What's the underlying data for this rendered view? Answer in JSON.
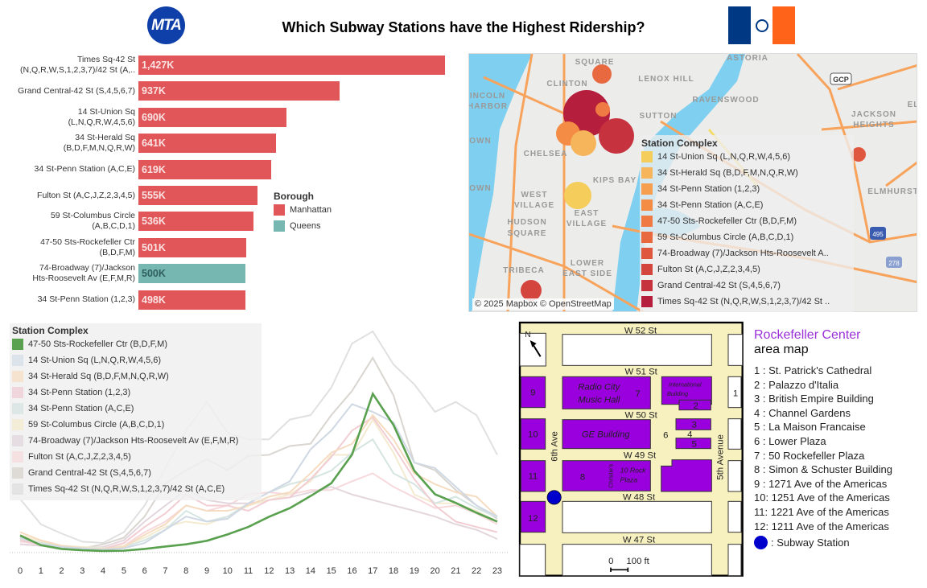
{
  "header": {
    "title": "Which Subway Stations have the Highest Ridership?",
    "logo_text": "MTA",
    "flag_colors": [
      "#003884",
      "#ffffff",
      "#ff6319"
    ]
  },
  "bar_chart": {
    "type": "bar",
    "rows": [
      {
        "label": [
          "Times Sq-42 St",
          "(N,Q,R,W,S,1,2,3,7)/42 St (A,.."
        ],
        "value": 1427,
        "value_label": "1,427K",
        "borough": "Manhattan"
      },
      {
        "label": [
          "Grand Central-42 St (S,4,5,6,7)"
        ],
        "value": 937,
        "value_label": "937K",
        "borough": "Manhattan"
      },
      {
        "label": [
          "14 St-Union Sq",
          "(L,N,Q,R,W,4,5,6)"
        ],
        "value": 690,
        "value_label": "690K",
        "borough": "Manhattan"
      },
      {
        "label": [
          "34 St-Herald Sq",
          "(B,D,F,M,N,Q,R,W)"
        ],
        "value": 641,
        "value_label": "641K",
        "borough": "Manhattan"
      },
      {
        "label": [
          "34 St-Penn Station (A,C,E)"
        ],
        "value": 619,
        "value_label": "619K",
        "borough": "Manhattan"
      },
      {
        "label": [
          "Fulton St (A,C,J,Z,2,3,4,5)"
        ],
        "value": 555,
        "value_label": "555K",
        "borough": "Manhattan"
      },
      {
        "label": [
          "59 St-Columbus Circle",
          "(A,B,C,D,1)"
        ],
        "value": 536,
        "value_label": "536K",
        "borough": "Manhattan"
      },
      {
        "label": [
          "47-50 Sts-Rockefeller Ctr",
          "(B,D,F,M)"
        ],
        "value": 501,
        "value_label": "501K",
        "borough": "Manhattan"
      },
      {
        "label": [
          "74-Broadway (7)/Jackson",
          "Hts-Roosevelt Av (E,F,M,R)"
        ],
        "value": 500,
        "value_label": "500K",
        "borough": "Queens"
      },
      {
        "label": [
          "34 St-Penn Station (1,2,3)"
        ],
        "value": 498,
        "value_label": "498K",
        "borough": "Manhattan"
      }
    ],
    "legend": {
      "title": "Borough",
      "items": [
        {
          "label": "Manhattan",
          "color": "#e15759"
        },
        {
          "label": "Queens",
          "color": "#76b7b2"
        }
      ]
    }
  },
  "map": {
    "legend_title": "Station Complex",
    "legend": [
      {
        "label": "14 St-Union Sq (L,N,Q,R,W,4,5,6)",
        "color": "#f5cd5a"
      },
      {
        "label": "34 St-Herald Sq (B,D,F,M,N,Q,R,W)",
        "color": "#f6b55a"
      },
      {
        "label": "34 St-Penn Station (1,2,3)",
        "color": "#f6a04f"
      },
      {
        "label": "34 St-Penn Station (A,C,E)",
        "color": "#f48c45"
      },
      {
        "label": "47-50 Sts-Rockefeller Ctr (B,D,F,M)",
        "color": "#ef7a43"
      },
      {
        "label": "59 St-Columbus Circle (A,B,C,D,1)",
        "color": "#e8683f"
      },
      {
        "label": "74-Broadway (7)/Jackson Hts-Roosevelt A..",
        "color": "#e0573f"
      },
      {
        "label": "Fulton St (A,C,J,Z,2,3,4,5)",
        "color": "#d4453e"
      },
      {
        "label": "Grand Central-42 St (S,4,5,6,7)",
        "color": "#c6323e"
      },
      {
        "label": "Times Sq-42 St (N,Q,R,W,S,1,2,3,7)/42 St ..",
        "color": "#b61e3d"
      }
    ],
    "places": [
      "ASTORIA",
      "SQUARE",
      "LENOX HILL",
      "CLINTON",
      "INCOLN",
      "HARBOR",
      "RAVENSWOOD",
      "JACKSON",
      "HEIGHTS",
      "SUTTON",
      "EL",
      "OWN",
      "CHELSEA",
      "KIPS BAY",
      "OWN",
      "WEST",
      "VILLAGE",
      "EAST",
      "VILLAGE",
      "HUDSON",
      "SQUARE",
      "ELMHURST",
      "LOWER",
      "EAST SIDE",
      "TRIBECA",
      "GCP",
      "278",
      "495"
    ],
    "attribution": "© 2025 Mapbox © OpenStreetMap"
  },
  "chart_data": {
    "type": "line",
    "x": [
      0,
      1,
      2,
      3,
      4,
      5,
      6,
      7,
      8,
      9,
      10,
      11,
      12,
      13,
      14,
      15,
      16,
      17,
      18,
      19,
      20,
      21,
      22,
      23
    ],
    "y_relative_scale": [
      0,
      100
    ],
    "legend_title": "Station Complex",
    "highlight_color": "#59a14f",
    "series": [
      {
        "name": "47-50 Sts-Rockefeller Ctr (B,D,F,M)",
        "color": "#59a14f",
        "highlight": true,
        "values": [
          7.4,
          3,
          1.3,
          0.7,
          0.4,
          0.5,
          1.3,
          2.4,
          3.4,
          5,
          7.9,
          11.3,
          15.9,
          19.8,
          25.3,
          31.1,
          44.1,
          71.7,
          57.5,
          36.8,
          26.1,
          22.2,
          17.7,
          13.7
        ]
      },
      {
        "name": "14 St-Union Sq (L,N,Q,R,W,4,5,6)",
        "color": "#cfd8e3",
        "values": [
          6.4,
          3.4,
          2.2,
          1.6,
          1,
          1.6,
          4,
          10,
          16,
          13.7,
          15,
          22,
          27,
          32,
          46.5,
          55,
          67,
          63.5,
          58.7,
          40.5,
          38,
          29.5,
          21,
          16
        ]
      },
      {
        "name": "34 St-Herald Sq (B,D,F,M,N,Q,R,W)",
        "color": "#f5dcc0",
        "values": [
          8.9,
          5.2,
          2.8,
          1.8,
          1.3,
          2.2,
          7.7,
          12.5,
          21,
          18.6,
          18.6,
          21,
          25,
          27,
          35.6,
          45,
          49,
          62,
          51,
          35.6,
          30.7,
          27,
          25,
          16
        ]
      },
      {
        "name": "34 St-Penn Station (1,2,3)",
        "color": "#f2cdd3",
        "values": [
          5.2,
          3.4,
          2.2,
          1.6,
          1.3,
          4,
          11.3,
          17.4,
          26,
          21,
          21,
          18.6,
          23.5,
          24.7,
          33,
          43,
          55,
          61,
          47.8,
          33,
          21,
          13.7,
          11.3,
          8.9
        ]
      },
      {
        "name": "34 St-Penn Station (A,C,E)",
        "color": "#d5e5e2",
        "values": [
          5.8,
          4,
          2.6,
          1.8,
          1.6,
          2.2,
          5.2,
          10,
          18.6,
          13.7,
          16,
          22,
          27,
          30.7,
          33,
          36.8,
          45,
          51,
          35.6,
          30.7,
          22,
          25,
          19.8,
          15.6
        ]
      },
      {
        "name": "59 St-Columbus Circle (A,B,C,D,1)",
        "color": "#f3ead0",
        "values": [
          7.7,
          4.6,
          2.8,
          2.2,
          1.8,
          2.8,
          6.4,
          11.3,
          13.7,
          12.5,
          16,
          21,
          23.5,
          26,
          32,
          44,
          44,
          60,
          45,
          26,
          22,
          22,
          18.6,
          13.7
        ]
      },
      {
        "name": "74-Broadway (7)/Jackson Hts-Roosevelt Av (E,F,M,R)",
        "color": "#e3d6dd",
        "values": [
          3.4,
          2.8,
          2.2,
          1.8,
          2.2,
          5.2,
          13.7,
          21,
          28,
          23.5,
          22,
          22,
          23.5,
          24.7,
          27,
          29.5,
          26,
          23.5,
          21,
          18.6,
          16,
          12.5,
          10,
          5.8
        ]
      },
      {
        "name": "Fulton St (A,C,J,Z,2,3,4,5)",
        "color": "#f7d9dc",
        "values": [
          4.6,
          3.4,
          2.6,
          1.8,
          1.6,
          2.8,
          8.9,
          13.7,
          21,
          18.6,
          21,
          26,
          27,
          26,
          28,
          28,
          32,
          35.6,
          29.5,
          24.7,
          19.8,
          21,
          17.4,
          12.5
        ]
      },
      {
        "name": "Grand Central-42 St (S,4,5,6,7)",
        "color": "#d9d5d0",
        "values": [
          3.4,
          2.8,
          2.2,
          1.6,
          3.4,
          6.4,
          16,
          31,
          37,
          42,
          37,
          43.5,
          44,
          48,
          49,
          62,
          73,
          88,
          71,
          40.5,
          37,
          28,
          21,
          15
        ]
      },
      {
        "name": "Times Sq-42 St (N,Q,R,W,S,1,2,3,7)/42 St (A,C,E)",
        "color": "#e0e0e0",
        "values": [
          24,
          12.5,
          8.3,
          4.6,
          4,
          8.9,
          21,
          38,
          55,
          68,
          54,
          51,
          51,
          60,
          62,
          74.5,
          94.5,
          100,
          85,
          76,
          63.5,
          68,
          62,
          44
        ]
      }
    ],
    "legend_swatch_colors": [
      "#59a14f",
      "#dde3ea",
      "#f5e3cf",
      "#f0d6da",
      "#dde8e6",
      "#f3edd8",
      "#e6dde2",
      "#f5e0e2",
      "#dedad6",
      "#e3e3e3"
    ]
  },
  "rock_map": {
    "title": "Rockefeller Center",
    "subtitle": "area map",
    "streets": [
      "W 52 St",
      "W 51 St",
      "W 50 St",
      "W 49 St",
      "W 48 St",
      "W 47 St",
      "6th Ave",
      "5th Avenue"
    ],
    "block_labels": {
      "radio1": "Radio City",
      "radio2": "Music Hall",
      "ge": "GE Building",
      "intl1": "International",
      "intl2": "Building",
      "rock1": "10 Rock",
      "rock2": "Plaza",
      "christies": "Christie's",
      "n": "N",
      "scale0": "0",
      "scale100": "100 ft"
    },
    "numbers": [
      "1",
      "2",
      "3",
      "4",
      "5",
      "6",
      "7",
      "8",
      "9",
      "10",
      "11",
      "12"
    ],
    "legend": [
      "1 : St. Patrick's Cathedral",
      "2 : Palazzo d'Italia",
      "3 : British Empire Building",
      "4 : Channel Gardens",
      "5 : La Maison Francaise",
      "6 : Lower Plaza",
      "7 : 50 Rockefeller Plaza",
      "8 : Simon & Schuster Building",
      "9 : 1271 Ave of the Americas",
      "10: 1251 Ave of the Americas",
      "11: 1221 Ave of the Americas",
      "12: 1211 Ave of the Americas"
    ],
    "subway_label": ": Subway Station",
    "purple": "#9900dd",
    "subway_color": "#0000cc"
  }
}
